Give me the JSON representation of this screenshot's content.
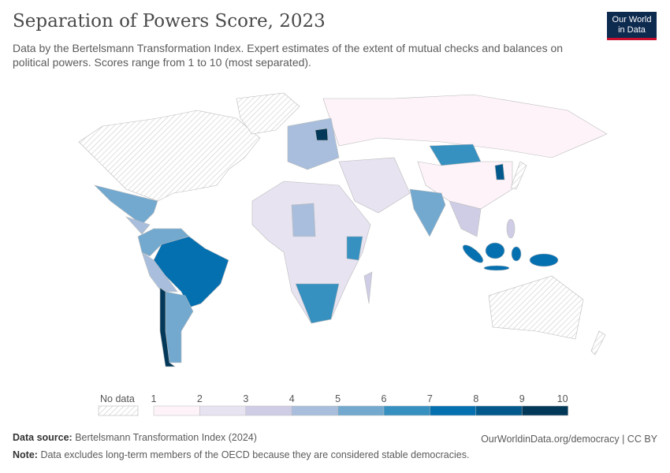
{
  "title": "Separation of Powers Score, 2023",
  "subtitle": "Data by the Bertelsmann Transformation Index. Expert estimates of the extent of mutual checks and balances on political powers. Scores range from 1 to 10 (most separated).",
  "logo": {
    "line1": "Our World",
    "line2": "in Data"
  },
  "legend": {
    "no_data_label": "No data",
    "ticks": [
      "1",
      "2",
      "3",
      "4",
      "5",
      "6",
      "7",
      "8",
      "9",
      "10"
    ],
    "colors": [
      "#fdf3f9",
      "#e7e3f1",
      "#cfcde5",
      "#a8bedc",
      "#73a9cf",
      "#3690c0",
      "#0570b0",
      "#04598c",
      "#023858"
    ],
    "no_data_color": "#e0e0e0"
  },
  "footer": {
    "source_label": "Data source:",
    "source": "Bertelsmann Transformation Index (2024)",
    "link": "OurWorldinData.org/democracy | CC BY",
    "note_label": "Note:",
    "note": "Data excludes long-term members of the OECD because they are considered stable democracies."
  }
}
